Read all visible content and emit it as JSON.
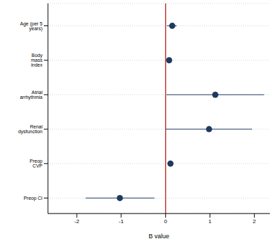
{
  "chart_data": {
    "type": "forest",
    "x_label": "B value",
    "categories": [
      "Age (per 5 years)",
      "Body mass index",
      "Atrial arrhythmia",
      "Renal dysfunction",
      "Preop CVP",
      "Preop CI"
    ],
    "values": [
      0.15,
      0.08,
      1.12,
      0.98,
      0.11,
      -1.03
    ],
    "ci_lower": [
      0.03,
      0.03,
      0.02,
      0.0,
      0.05,
      -1.8
    ],
    "ci_upper": [
      0.25,
      0.13,
      2.22,
      1.95,
      0.17,
      -0.25
    ],
    "xlim": [
      -2.65,
      2.35
    ],
    "xticks": [
      -2,
      -1,
      0,
      1,
      2
    ],
    "reference_line": 0,
    "grid": true,
    "color": "#1f3a5f",
    "reference_color": "#c0392b"
  }
}
